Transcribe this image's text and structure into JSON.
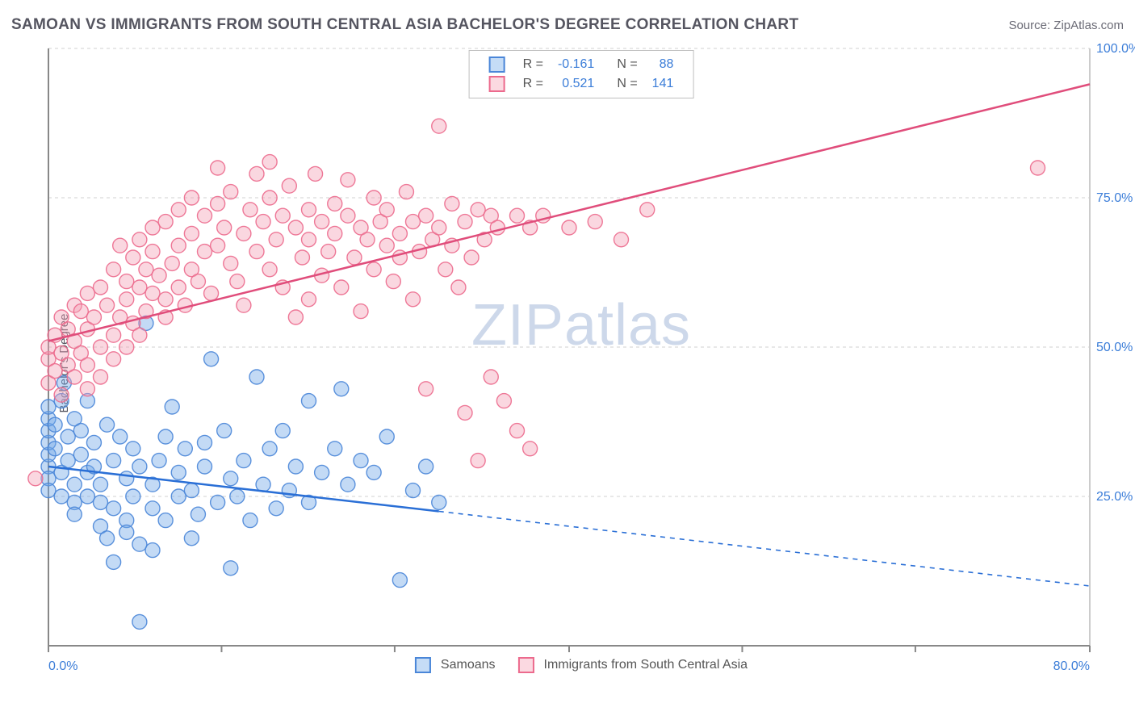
{
  "header": {
    "title": "SAMOAN VS IMMIGRANTS FROM SOUTH CENTRAL ASIA BACHELOR'S DEGREE CORRELATION CHART",
    "source_label": "Source: ZipAtlas.com"
  },
  "ylabel": "Bachelor's Degree",
  "watermark": "ZIPatlas",
  "chart": {
    "type": "scatter",
    "xlim": [
      0,
      80
    ],
    "ylim": [
      0,
      100
    ],
    "grid_color": "#d0d0d0",
    "background_color": "#ffffff",
    "axis_color": "#888888",
    "yticks": [
      25,
      50,
      75,
      100
    ],
    "ytick_labels": [
      "25.0%",
      "50.0%",
      "75.0%",
      "100.0%"
    ],
    "xticks": [
      0,
      13.3,
      26.6,
      40,
      53.3,
      66.6,
      80
    ],
    "xtick_labels_shown": {
      "0": "0.0%",
      "80": "80.0%"
    },
    "tick_label_color": "#3b7dd8",
    "marker_radius": 9,
    "marker_opacity": 0.42,
    "marker_stroke_opacity": 0.9,
    "line_width": 2.5
  },
  "series": [
    {
      "key": "samoans",
      "label": "Samoans",
      "color_fill": "#6fa8e8",
      "color_stroke": "#4a86d8",
      "line_color": "#2a6fd6",
      "R": "-0.161",
      "N": "88",
      "trendline": {
        "x1": 0,
        "y1": 30,
        "x2": 80,
        "y2": 10,
        "solid_until_x": 30
      },
      "points": [
        [
          0,
          30
        ],
        [
          0,
          32
        ],
        [
          0,
          34
        ],
        [
          0,
          36
        ],
        [
          0,
          38
        ],
        [
          0,
          40
        ],
        [
          0,
          28
        ],
        [
          0,
          26
        ],
        [
          0.5,
          33
        ],
        [
          0.5,
          37
        ],
        [
          1,
          41
        ],
        [
          1,
          29
        ],
        [
          1,
          25
        ],
        [
          1.2,
          44
        ],
        [
          1.5,
          31
        ],
        [
          1.5,
          35
        ],
        [
          2,
          38
        ],
        [
          2,
          27
        ],
        [
          2,
          24
        ],
        [
          2,
          22
        ],
        [
          2.5,
          32
        ],
        [
          2.5,
          36
        ],
        [
          3,
          29
        ],
        [
          3,
          25
        ],
        [
          3,
          41
        ],
        [
          3.5,
          34
        ],
        [
          3.5,
          30
        ],
        [
          4,
          27
        ],
        [
          4,
          20
        ],
        [
          4,
          24
        ],
        [
          4.5,
          37
        ],
        [
          4.5,
          18
        ],
        [
          5,
          31
        ],
        [
          5,
          23
        ],
        [
          5,
          14
        ],
        [
          5.5,
          35
        ],
        [
          6,
          28
        ],
        [
          6,
          21
        ],
        [
          6,
          19
        ],
        [
          6.5,
          33
        ],
        [
          6.5,
          25
        ],
        [
          7,
          30
        ],
        [
          7,
          17
        ],
        [
          7,
          4
        ],
        [
          7.5,
          54
        ],
        [
          8,
          23
        ],
        [
          8,
          27
        ],
        [
          8,
          16
        ],
        [
          8.5,
          31
        ],
        [
          9,
          35
        ],
        [
          9,
          21
        ],
        [
          9.5,
          40
        ],
        [
          10,
          25
        ],
        [
          10,
          29
        ],
        [
          10.5,
          33
        ],
        [
          11,
          18
        ],
        [
          11,
          26
        ],
        [
          11.5,
          22
        ],
        [
          12,
          34
        ],
        [
          12,
          30
        ],
        [
          12.5,
          48
        ],
        [
          13,
          24
        ],
        [
          13.5,
          36
        ],
        [
          14,
          28
        ],
        [
          14,
          13
        ],
        [
          14.5,
          25
        ],
        [
          15,
          31
        ],
        [
          15.5,
          21
        ],
        [
          16,
          45
        ],
        [
          16.5,
          27
        ],
        [
          17,
          33
        ],
        [
          17.5,
          23
        ],
        [
          18,
          36
        ],
        [
          18.5,
          26
        ],
        [
          19,
          30
        ],
        [
          20,
          41
        ],
        [
          20,
          24
        ],
        [
          21,
          29
        ],
        [
          22,
          33
        ],
        [
          22.5,
          43
        ],
        [
          23,
          27
        ],
        [
          24,
          31
        ],
        [
          25,
          29
        ],
        [
          26,
          35
        ],
        [
          27,
          11
        ],
        [
          28,
          26
        ],
        [
          29,
          30
        ],
        [
          30,
          24
        ]
      ]
    },
    {
      "key": "sc_asia",
      "label": "Immigrants from South Central Asia",
      "color_fill": "#f4a0b5",
      "color_stroke": "#ec6a8d",
      "line_color": "#e04d7b",
      "R": "0.521",
      "N": "141",
      "trendline": {
        "x1": 0,
        "y1": 51,
        "x2": 80,
        "y2": 94,
        "solid_until_x": 80
      },
      "points": [
        [
          -1,
          28
        ],
        [
          0,
          44
        ],
        [
          0,
          48
        ],
        [
          0,
          50
        ],
        [
          0.5,
          46
        ],
        [
          0.5,
          52
        ],
        [
          1,
          42
        ],
        [
          1,
          49
        ],
        [
          1,
          55
        ],
        [
          1.5,
          53
        ],
        [
          1.5,
          47
        ],
        [
          2,
          45
        ],
        [
          2,
          51
        ],
        [
          2,
          57
        ],
        [
          2.5,
          56
        ],
        [
          2.5,
          49
        ],
        [
          3,
          47
        ],
        [
          3,
          53
        ],
        [
          3,
          43
        ],
        [
          3,
          59
        ],
        [
          3.5,
          55
        ],
        [
          4,
          50
        ],
        [
          4,
          60
        ],
        [
          4,
          45
        ],
        [
          4.5,
          57
        ],
        [
          5,
          52
        ],
        [
          5,
          63
        ],
        [
          5,
          48
        ],
        [
          5.5,
          55
        ],
        [
          5.5,
          67
        ],
        [
          6,
          61
        ],
        [
          6,
          58
        ],
        [
          6,
          50
        ],
        [
          6.5,
          65
        ],
        [
          6.5,
          54
        ],
        [
          7,
          60
        ],
        [
          7,
          68
        ],
        [
          7,
          52
        ],
        [
          7.5,
          63
        ],
        [
          7.5,
          56
        ],
        [
          8,
          70
        ],
        [
          8,
          59
        ],
        [
          8,
          66
        ],
        [
          8.5,
          62
        ],
        [
          9,
          58
        ],
        [
          9,
          71
        ],
        [
          9,
          55
        ],
        [
          9.5,
          64
        ],
        [
          10,
          60
        ],
        [
          10,
          73
        ],
        [
          10,
          67
        ],
        [
          10.5,
          57
        ],
        [
          11,
          69
        ],
        [
          11,
          75
        ],
        [
          11,
          63
        ],
        [
          11.5,
          61
        ],
        [
          12,
          66
        ],
        [
          12,
          72
        ],
        [
          12.5,
          59
        ],
        [
          13,
          74
        ],
        [
          13,
          67
        ],
        [
          13,
          80
        ],
        [
          13.5,
          70
        ],
        [
          14,
          64
        ],
        [
          14,
          76
        ],
        [
          14.5,
          61
        ],
        [
          15,
          69
        ],
        [
          15,
          57
        ],
        [
          15.5,
          73
        ],
        [
          16,
          66
        ],
        [
          16,
          79
        ],
        [
          16.5,
          71
        ],
        [
          17,
          63
        ],
        [
          17,
          75
        ],
        [
          17,
          81
        ],
        [
          17.5,
          68
        ],
        [
          18,
          72
        ],
        [
          18,
          60
        ],
        [
          18.5,
          77
        ],
        [
          19,
          70
        ],
        [
          19,
          55
        ],
        [
          19.5,
          65
        ],
        [
          20,
          73
        ],
        [
          20,
          68
        ],
        [
          20,
          58
        ],
        [
          20.5,
          79
        ],
        [
          21,
          71
        ],
        [
          21,
          62
        ],
        [
          21.5,
          66
        ],
        [
          22,
          74
        ],
        [
          22,
          69
        ],
        [
          22.5,
          60
        ],
        [
          23,
          72
        ],
        [
          23,
          78
        ],
        [
          23.5,
          65
        ],
        [
          24,
          70
        ],
        [
          24,
          56
        ],
        [
          24.5,
          68
        ],
        [
          25,
          75
        ],
        [
          25,
          63
        ],
        [
          25.5,
          71
        ],
        [
          26,
          67
        ],
        [
          26,
          73
        ],
        [
          26.5,
          61
        ],
        [
          27,
          69
        ],
        [
          27,
          65
        ],
        [
          27.5,
          76
        ],
        [
          28,
          71
        ],
        [
          28,
          58
        ],
        [
          28.5,
          66
        ],
        [
          29,
          72
        ],
        [
          29,
          43
        ],
        [
          29.5,
          68
        ],
        [
          30,
          70
        ],
        [
          30,
          87
        ],
        [
          30.5,
          63
        ],
        [
          31,
          74
        ],
        [
          31,
          67
        ],
        [
          31.5,
          60
        ],
        [
          32,
          71
        ],
        [
          32,
          39
        ],
        [
          32.5,
          65
        ],
        [
          33,
          73
        ],
        [
          33,
          31
        ],
        [
          33.5,
          68
        ],
        [
          34,
          72
        ],
        [
          34,
          45
        ],
        [
          34.5,
          70
        ],
        [
          35,
          41
        ],
        [
          36,
          72
        ],
        [
          36,
          36
        ],
        [
          37,
          70
        ],
        [
          37,
          33
        ],
        [
          38,
          72
        ],
        [
          40,
          70
        ],
        [
          42,
          71
        ],
        [
          44,
          68
        ],
        [
          46,
          73
        ],
        [
          76,
          80
        ]
      ]
    }
  ],
  "legend_top": {
    "cols": [
      "swatch",
      "R =",
      "R_value",
      "N =",
      "N_value"
    ]
  },
  "legend_bottom": {
    "items": [
      "samoans",
      "sc_asia"
    ]
  }
}
